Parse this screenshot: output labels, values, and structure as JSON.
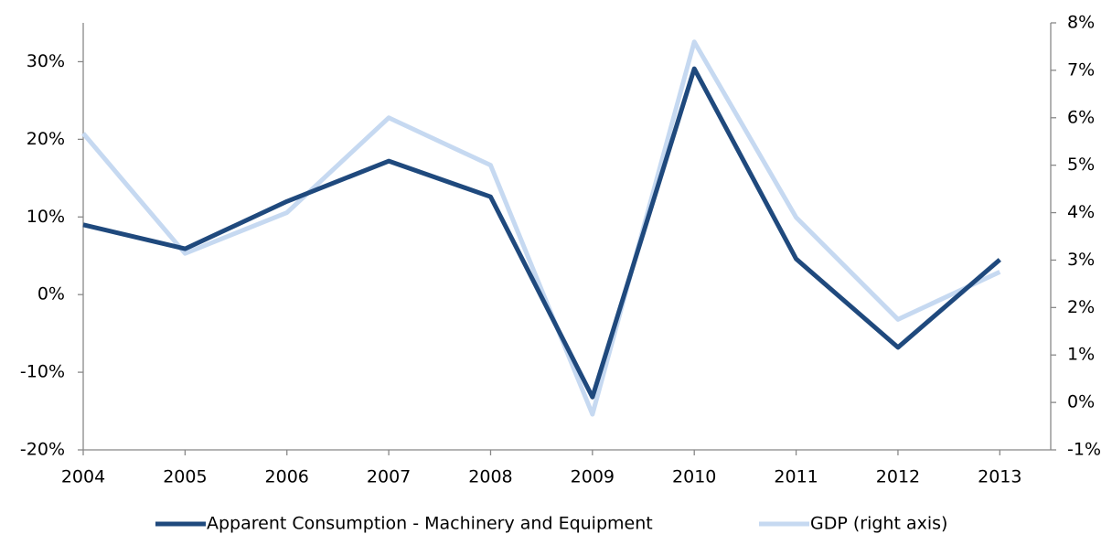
{
  "chart_data": {
    "type": "line",
    "categories": [
      "2004",
      "2005",
      "2006",
      "2007",
      "2008",
      "2009",
      "2010",
      "2011",
      "2012",
      "2013"
    ],
    "series": [
      {
        "name": "Apparent Consumption - Machinery and Equipment",
        "color": "#1f497d",
        "values": [
          9,
          5.9,
          12,
          17.2,
          12.6,
          -13.2,
          29.1,
          4.6,
          -6.8,
          4.5
        ]
      },
      {
        "name": "GDP (right axis)",
        "color": "#c6d9f1",
        "axis": "y2",
        "values": [
          5.67,
          3.14,
          4.0,
          6.0,
          5.0,
          -0.25,
          7.6,
          3.9,
          1.75,
          2.75
        ]
      }
    ],
    "ylim": [
      -20,
      35
    ],
    "yticks": [
      {
        "value": -20,
        "label": "-20%"
      },
      {
        "value": -10,
        "label": "-10%"
      },
      {
        "value": 0,
        "label": "0%"
      },
      {
        "value": 10,
        "label": "10%"
      },
      {
        "value": 20,
        "label": "20%"
      },
      {
        "value": 30,
        "label": "30%"
      }
    ],
    "y2lim": [
      -1,
      8
    ],
    "y2ticks": [
      {
        "value": -1,
        "label": "-1%"
      },
      {
        "value": 0,
        "label": "0%"
      },
      {
        "value": 1,
        "label": "1%"
      },
      {
        "value": 2,
        "label": "2%"
      },
      {
        "value": 3,
        "label": "3%"
      },
      {
        "value": 4,
        "label": "4%"
      },
      {
        "value": 5,
        "label": "5%"
      },
      {
        "value": 6,
        "label": "6%"
      },
      {
        "value": 7,
        "label": "7%"
      },
      {
        "value": 8,
        "label": "8%"
      }
    ],
    "legend": "bottom"
  }
}
